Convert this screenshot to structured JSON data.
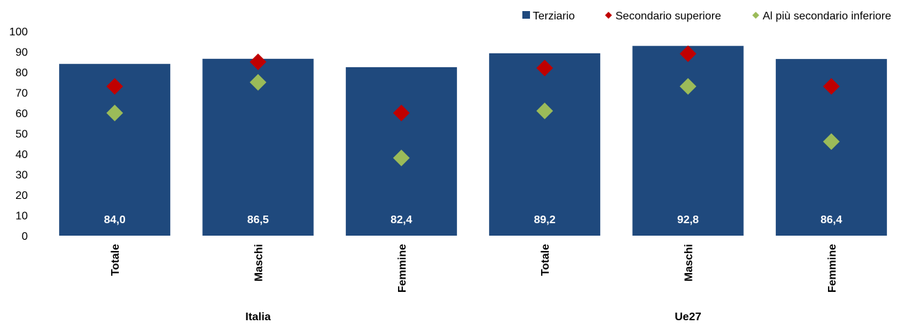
{
  "chart_data": {
    "type": "bar",
    "title": "",
    "xlabel": "",
    "ylabel": "",
    "ylim": [
      0,
      100
    ],
    "yticks": [
      0,
      10,
      20,
      30,
      40,
      50,
      60,
      70,
      80,
      90,
      100
    ],
    "grid": false,
    "legend_position": "top-right",
    "categories": [
      "Totale",
      "Maschi",
      "Femmine",
      "Totale",
      "Maschi",
      "Femmine"
    ],
    "groups": [
      {
        "label": "Italia",
        "categories": [
          "Totale",
          "Maschi",
          "Femmine"
        ]
      },
      {
        "label": "Ue27",
        "categories": [
          "Totale",
          "Maschi",
          "Femmine"
        ]
      }
    ],
    "series": [
      {
        "name": "Terziario",
        "type": "bar",
        "color": "#1F497D",
        "values": [
          84.0,
          86.5,
          82.4,
          89.2,
          92.8,
          86.4
        ],
        "data_labels": [
          "84,0",
          "86,5",
          "82,4",
          "89,2",
          "92,8",
          "86,4"
        ]
      },
      {
        "name": "Secondario superiore",
        "type": "scatter",
        "marker": "diamond",
        "color": "#C00000",
        "values": [
          73,
          85,
          60,
          82,
          89,
          73
        ]
      },
      {
        "name": "Al più secondario inferiore",
        "type": "scatter",
        "marker": "diamond",
        "color": "#9BBB59",
        "values": [
          60,
          75,
          38,
          61,
          73,
          46
        ]
      }
    ]
  }
}
